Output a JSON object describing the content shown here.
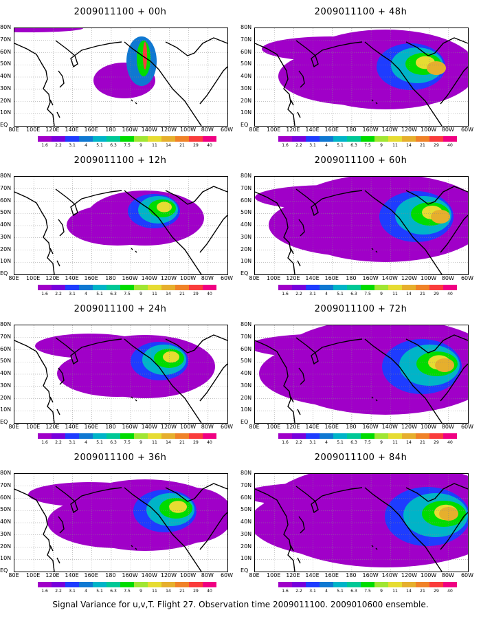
{
  "panels": [
    {
      "title": "2009011100 + 00h",
      "level": 0
    },
    {
      "title": "2009011100 + 48h",
      "level": 4
    },
    {
      "title": "2009011100 + 12h",
      "level": 1
    },
    {
      "title": "2009011100 + 60h",
      "level": 5
    },
    {
      "title": "2009011100 + 24h",
      "level": 2
    },
    {
      "title": "2009011100 + 72h",
      "level": 6
    },
    {
      "title": "2009011100 + 36h",
      "level": 3
    },
    {
      "title": "2009011100 + 84h",
      "level": 7
    }
  ],
  "lat_labels": [
    "80N",
    "70N",
    "60N",
    "50N",
    "40N",
    "30N",
    "20N",
    "10N",
    "EQ"
  ],
  "lon_labels": [
    "80E",
    "100E",
    "120E",
    "140E",
    "160E",
    "180",
    "160W",
    "140W",
    "120W",
    "100W",
    "80W",
    "60W"
  ],
  "colorbar": {
    "labels": [
      "1.6",
      "2.2",
      "3.1",
      "4",
      "5.1",
      "6.3",
      "7.5",
      "9",
      "11",
      "14",
      "21",
      "29",
      "40"
    ],
    "colors": [
      "#a000c8",
      "#7800dc",
      "#1e3cff",
      "#0f78d2",
      "#00b4c8",
      "#00c896",
      "#00dc00",
      "#a0e632",
      "#e6dc32",
      "#e6af2d",
      "#f08228",
      "#fa3c3c",
      "#f00082"
    ]
  },
  "footer": "Signal Variance for u,v,T. Flight 27. Observation time 2009011100. 2009010600 ensemble."
}
